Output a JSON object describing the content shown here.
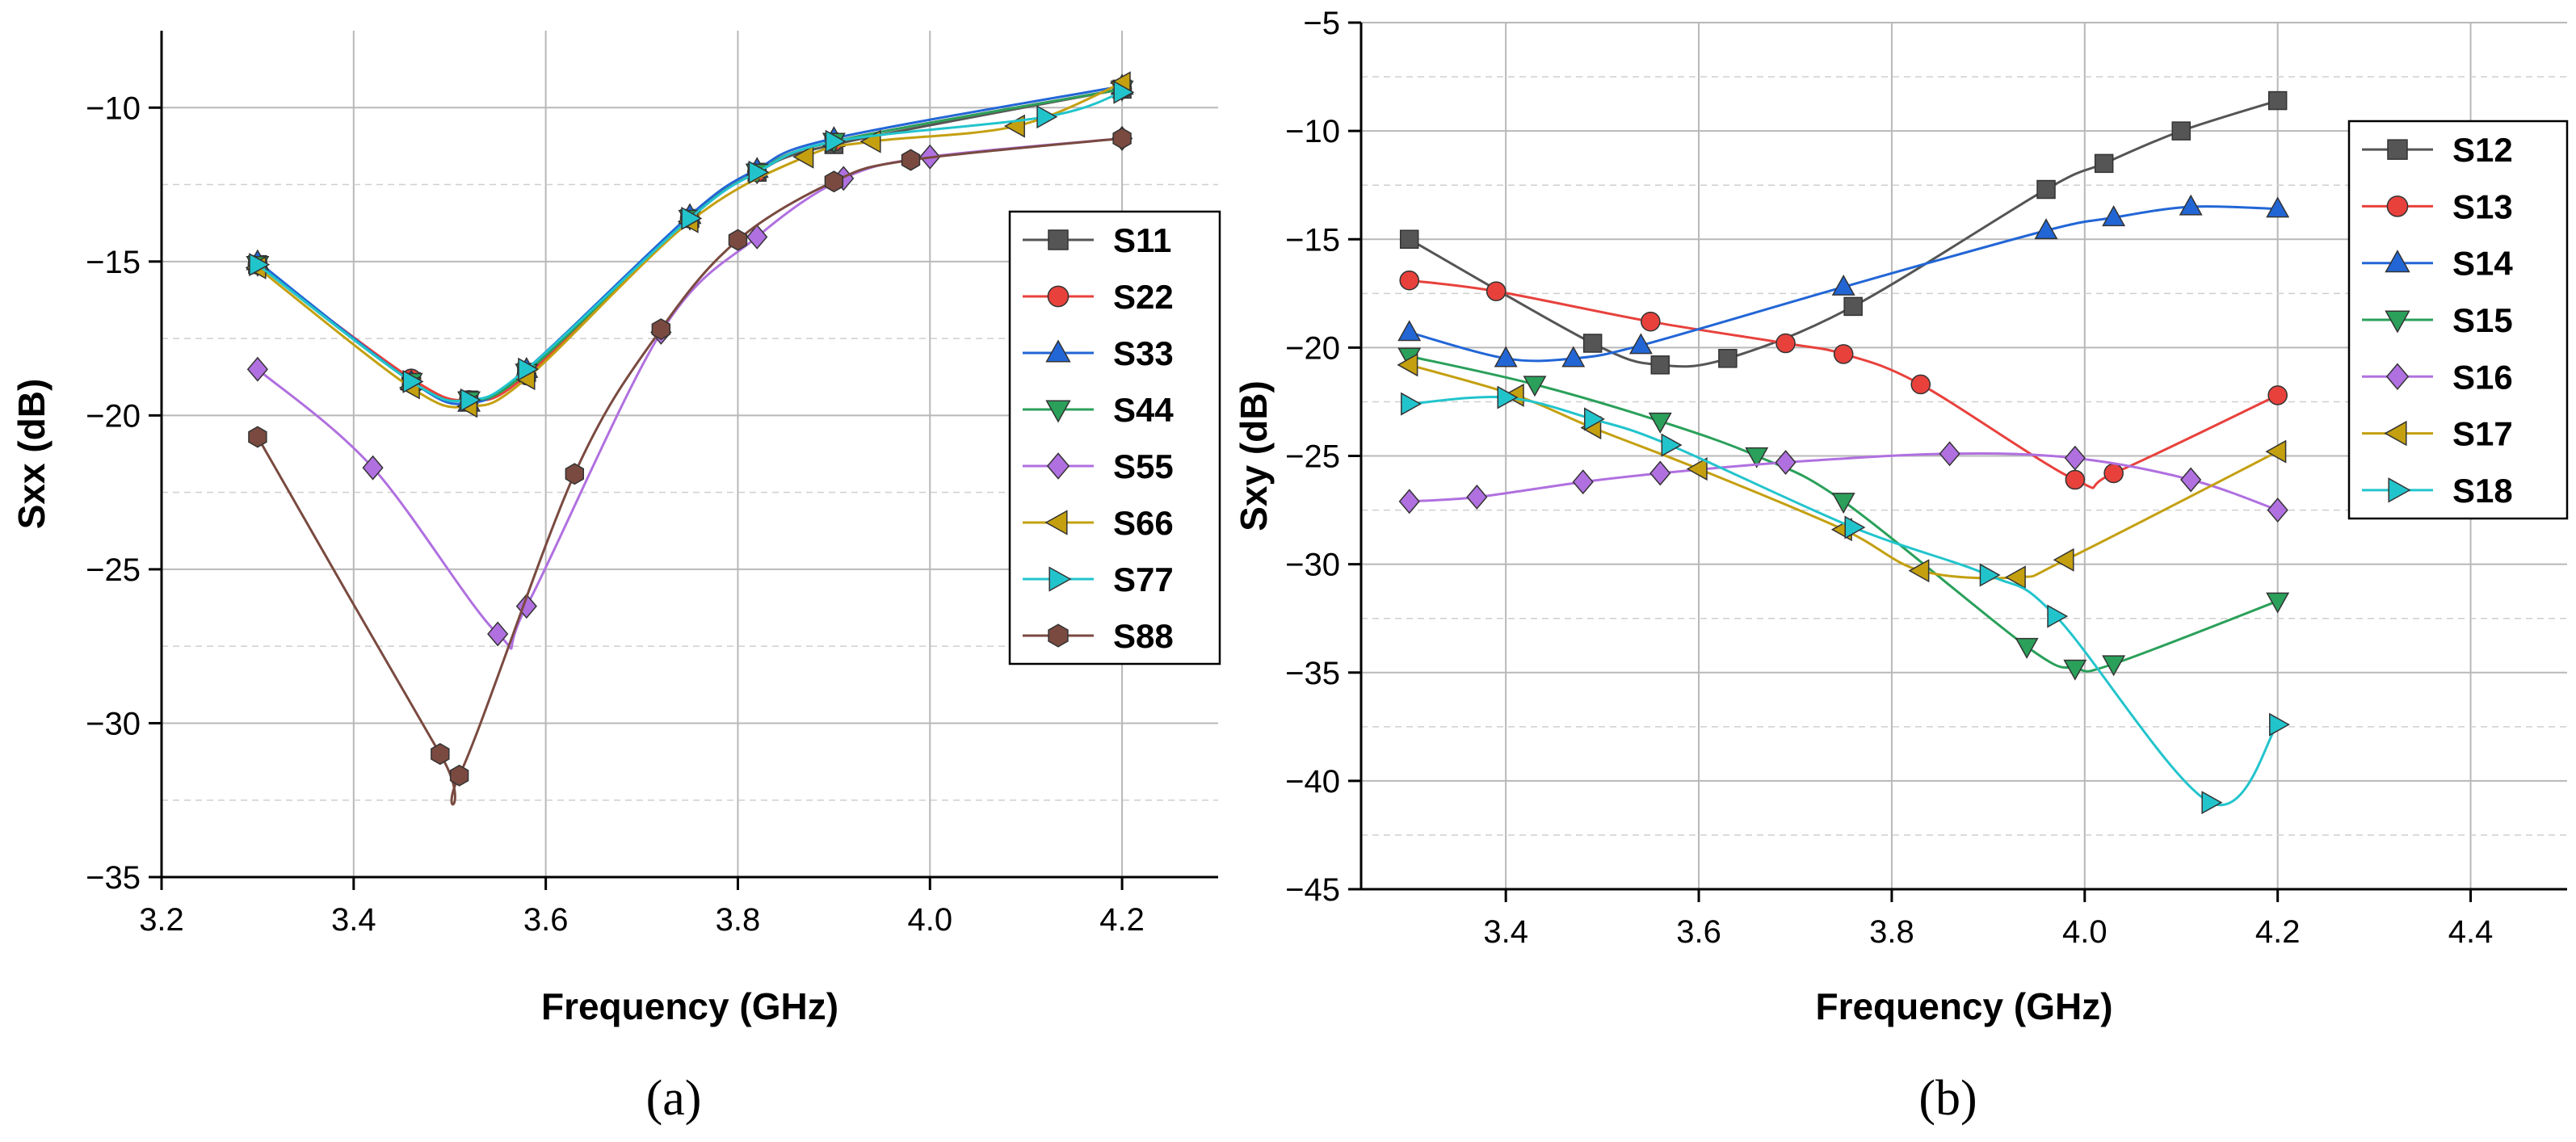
{
  "colors": {
    "S11": "#555555",
    "S22": "#e8413c",
    "S33": "#2266d6",
    "S44": "#2aa05a",
    "S55": "#b070e0",
    "S66": "#c4a010",
    "S77": "#22c4cc",
    "S88": "#7a4a40",
    "S12": "#555555",
    "S13": "#e8413c",
    "S14": "#2266d6",
    "S15": "#2aa05a",
    "S16": "#b070e0",
    "S17": "#c4a010",
    "S18": "#22c4cc"
  },
  "chart_data": [
    {
      "type": "line",
      "panel_label": "(a)",
      "xlabel": "Frequency (GHz)",
      "ylabel": "Sxx (dB)",
      "xlim": [
        3.2,
        4.3
      ],
      "ylim": [
        -35,
        -7.5
      ],
      "xticks": [
        3.2,
        3.4,
        3.6,
        3.8,
        4.0,
        4.2
      ],
      "xtick_labels": [
        "3.2",
        "3.4",
        "3.6",
        "3.8",
        "4.0",
        "4.2"
      ],
      "yticks": [
        -35,
        -30,
        -25,
        -20,
        -15,
        -10
      ],
      "ytick_labels": [
        "−35",
        "−30",
        "−25",
        "−20",
        "−15",
        "−10"
      ],
      "grid": true,
      "legend_position": "right",
      "series": [
        {
          "name": "S11",
          "marker": "square",
          "x": [
            3.3,
            3.46,
            3.52,
            3.58,
            3.75,
            3.82,
            3.9,
            4.2
          ],
          "y": [
            -15.1,
            -18.9,
            -19.5,
            -18.6,
            -13.6,
            -12.1,
            -11.2,
            -9.4
          ]
        },
        {
          "name": "S22",
          "marker": "circle",
          "x": [
            3.3,
            3.46,
            3.52,
            3.58,
            3.75,
            3.82,
            3.9,
            4.2
          ],
          "y": [
            -15.1,
            -18.8,
            -19.5,
            -18.7,
            -13.6,
            -12.1,
            -11.1,
            -9.4
          ]
        },
        {
          "name": "S33",
          "marker": "triangle-up",
          "x": [
            3.3,
            3.46,
            3.52,
            3.58,
            3.75,
            3.82,
            3.9,
            4.2
          ],
          "y": [
            -15.0,
            -18.9,
            -19.6,
            -18.5,
            -13.5,
            -12.0,
            -11.0,
            -9.3
          ]
        },
        {
          "name": "S44",
          "marker": "triangle-down",
          "x": [
            3.3,
            3.46,
            3.52,
            3.58,
            3.75,
            3.82,
            3.9,
            4.2
          ],
          "y": [
            -15.1,
            -18.9,
            -19.5,
            -18.6,
            -13.6,
            -12.1,
            -11.1,
            -9.4
          ]
        },
        {
          "name": "S55",
          "marker": "diamond",
          "x": [
            3.3,
            3.42,
            3.55,
            3.58,
            3.72,
            3.82,
            3.91,
            4.0,
            4.2
          ],
          "y": [
            -18.5,
            -21.7,
            -27.1,
            -26.2,
            -17.3,
            -14.2,
            -12.3,
            -11.6,
            -11.0
          ]
        },
        {
          "name": "S66",
          "marker": "triangle-left",
          "x": [
            3.3,
            3.46,
            3.52,
            3.58,
            3.75,
            3.87,
            3.94,
            4.09,
            4.2
          ],
          "y": [
            -15.2,
            -19.1,
            -19.7,
            -18.8,
            -13.7,
            -11.6,
            -11.1,
            -10.6,
            -9.2
          ]
        },
        {
          "name": "S77",
          "marker": "triangle-right",
          "x": [
            3.3,
            3.46,
            3.52,
            3.58,
            3.75,
            3.82,
            3.9,
            4.12,
            4.2
          ],
          "y": [
            -15.1,
            -18.9,
            -19.5,
            -18.5,
            -13.6,
            -12.1,
            -11.1,
            -10.3,
            -9.5
          ]
        },
        {
          "name": "S88",
          "marker": "hexagon",
          "x": [
            3.3,
            3.49,
            3.51,
            3.63,
            3.72,
            3.8,
            3.9,
            3.98,
            4.2
          ],
          "y": [
            -20.7,
            -31.0,
            -31.7,
            -21.9,
            -17.2,
            -14.3,
            -12.4,
            -11.7,
            -11.0
          ]
        }
      ]
    },
    {
      "type": "line",
      "panel_label": "(b)",
      "xlabel": "Frequency (GHz)",
      "ylabel": "Sxy (dB)",
      "xlim": [
        3.25,
        4.5
      ],
      "ylim": [
        -45,
        -5
      ],
      "xticks": [
        3.4,
        3.6,
        3.8,
        4.0,
        4.2,
        4.4
      ],
      "xtick_labels": [
        "3.4",
        "3.6",
        "3.8",
        "4.0",
        "4.2",
        "4.4"
      ],
      "yticks": [
        -45,
        -40,
        -35,
        -30,
        -25,
        -20,
        -15,
        -10,
        -5
      ],
      "ytick_labels": [
        "−45",
        "−40",
        "−35",
        "−30",
        "−25",
        "−20",
        "−15",
        "−10",
        "−5"
      ],
      "grid": true,
      "legend_position": "top-right",
      "series": [
        {
          "name": "S12",
          "marker": "square",
          "x": [
            3.3,
            3.49,
            3.56,
            3.63,
            3.76,
            3.96,
            4.02,
            4.1,
            4.2
          ],
          "y": [
            -15.0,
            -19.8,
            -20.8,
            -20.5,
            -18.1,
            -12.7,
            -11.5,
            -10.0,
            -8.6
          ]
        },
        {
          "name": "S13",
          "marker": "circle",
          "x": [
            3.3,
            3.39,
            3.55,
            3.69,
            3.75,
            3.83,
            3.99,
            4.03,
            4.2
          ],
          "y": [
            -16.9,
            -17.4,
            -18.8,
            -19.8,
            -20.3,
            -21.7,
            -26.1,
            -25.8,
            -22.2
          ]
        },
        {
          "name": "S14",
          "marker": "triangle-up",
          "x": [
            3.3,
            3.4,
            3.47,
            3.54,
            3.75,
            3.96,
            4.03,
            4.11,
            4.2
          ],
          "y": [
            -19.3,
            -20.5,
            -20.5,
            -19.9,
            -17.2,
            -14.6,
            -14.0,
            -13.5,
            -13.6
          ]
        },
        {
          "name": "S15",
          "marker": "triangle-down",
          "x": [
            3.3,
            3.43,
            3.56,
            3.66,
            3.75,
            3.94,
            3.99,
            4.03,
            4.2
          ],
          "y": [
            -20.4,
            -21.7,
            -23.4,
            -25.0,
            -27.1,
            -33.8,
            -34.8,
            -34.6,
            -31.7
          ]
        },
        {
          "name": "S16",
          "marker": "diamond",
          "x": [
            3.3,
            3.37,
            3.48,
            3.56,
            3.69,
            3.86,
            3.99,
            4.11,
            4.2
          ],
          "y": [
            -27.1,
            -26.9,
            -26.2,
            -25.8,
            -25.3,
            -24.9,
            -25.1,
            -26.1,
            -27.5
          ]
        },
        {
          "name": "S17",
          "marker": "triangle-left",
          "x": [
            3.3,
            3.41,
            3.49,
            3.6,
            3.75,
            3.83,
            3.93,
            3.98,
            4.2
          ],
          "y": [
            -20.8,
            -22.2,
            -23.7,
            -25.6,
            -28.4,
            -30.3,
            -30.6,
            -29.8,
            -24.8
          ]
        },
        {
          "name": "S18",
          "marker": "triangle-right",
          "x": [
            3.3,
            3.4,
            3.49,
            3.57,
            3.76,
            3.9,
            3.97,
            4.13,
            4.2
          ],
          "y": [
            -22.6,
            -22.3,
            -23.3,
            -24.5,
            -28.3,
            -30.5,
            -32.4,
            -41.0,
            -37.4
          ]
        }
      ]
    }
  ]
}
